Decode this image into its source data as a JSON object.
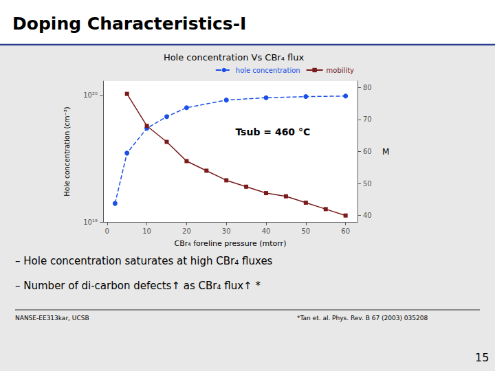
{
  "chart_data": {
    "type": "line",
    "title": "Doping Characteristics-I",
    "subtitle": "Hole concentration Vs CBr₄ flux",
    "xlabel": "CBr₄ foreline pressure (mtorr)",
    "ylabel": "Hole concentration (cm⁻³)",
    "y2label": "M",
    "annotation": "Tsub = 460 °C",
    "bullets": [
      "– Hole concentration saturates at high CBr₄ fluxes",
      "– Number of di-carbon defects↑ as CBr₄ flux↑ *"
    ],
    "footnotes": [
      "NANSE-EE313kar, UCSB",
      "*Tan et. al. Phys. Rev. B 67 (2003) 035208"
    ],
    "page_number": "15",
    "series": [
      {
        "name": "hole concentration",
        "color": "#1a50e8",
        "marker": "circle",
        "line_style": "dashed",
        "x": [
          2,
          5,
          10,
          15,
          20,
          30,
          40,
          50,
          60
        ],
        "values": [
          1.4e+19,
          3.5e+19,
          5.5e+19,
          6.8e+19,
          8e+19,
          9.2e+19,
          9.6e+19,
          9.8e+19,
          9.9e+19
        ]
      },
      {
        "name": "mobility",
        "color": "#7a1a1a",
        "marker": "square",
        "line_style": "solid",
        "axis": "y2",
        "x": [
          5,
          10,
          15,
          20,
          25,
          30,
          35,
          40,
          45,
          50,
          55,
          60
        ],
        "values": [
          78,
          68,
          63,
          57,
          54,
          51,
          49,
          47,
          46,
          44,
          42,
          40
        ]
      }
    ],
    "xlim": [
      -1,
      63
    ],
    "xticks": [
      0,
      10,
      20,
      30,
      40,
      50,
      60
    ],
    "ylim": [
      1e+19,
      1.3e+20
    ],
    "yticks": [
      {
        "value": 1e+19,
        "label": "10¹⁹"
      },
      {
        "value": 1e+20,
        "label": "10²⁰"
      }
    ],
    "y2lim": [
      38,
      82
    ],
    "y2ticks": [
      40,
      50,
      60,
      70,
      80
    ],
    "log": "y",
    "grid": false,
    "legend": "upper right"
  }
}
